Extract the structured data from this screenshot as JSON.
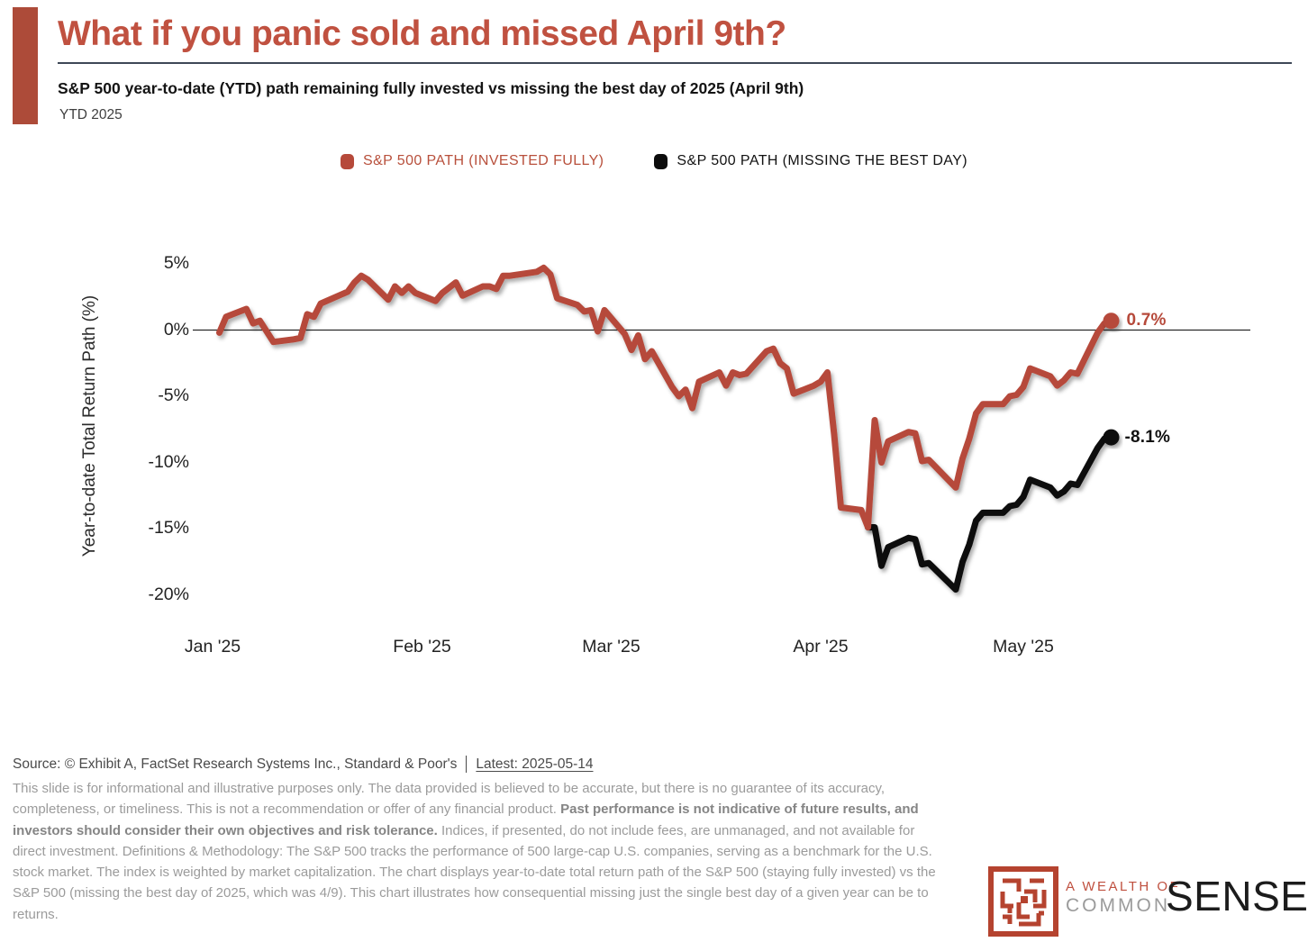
{
  "colors": {
    "accent_bar": "#ad4b39",
    "title_red": "#c05140",
    "rule_slate": "#3e4857",
    "line_red": "#b6493a",
    "line_black": "#141414",
    "legend_red_text": "#b8503c",
    "wealth_red": "#c05140",
    "common_gray": "#9b9b9b",
    "sense_black": "#1c1c1c",
    "maze_red": "#b5432f"
  },
  "header": {
    "title": "What if you panic sold and missed April 9th?",
    "subtitle": "S&P 500 year-to-date (YTD) path remaining fully invested vs missing the best day of 2025 (April 9th)",
    "period": "YTD 2025"
  },
  "legend": [
    {
      "label": "S&P 500 PATH (INVESTED FULLY)",
      "color": "#b6493a"
    },
    {
      "label": "S&P 500 PATH (MISSING THE BEST DAY)",
      "color": "#0c0c0c"
    }
  ],
  "chart_data": {
    "type": "line",
    "title": "S&P 500 year-to-date (YTD) path remaining fully invested vs missing the best day of 2025 (April 9th)",
    "xlabel": "",
    "ylabel": "Year-to-date Total Return Path (%)",
    "ylim": [
      -22,
      6.5
    ],
    "xlim": [
      "2025-01-01",
      "2025-05-16"
    ],
    "grid": false,
    "zero_line": true,
    "legend_position": "top-center",
    "yticks": [
      {
        "value": 5,
        "label": "5%"
      },
      {
        "value": 0,
        "label": "0%"
      },
      {
        "value": -5,
        "label": "-5%"
      },
      {
        "value": -10,
        "label": "-10%"
      },
      {
        "value": -15,
        "label": "-15%"
      },
      {
        "value": -20,
        "label": "-20%"
      }
    ],
    "xticks": [
      {
        "date": "2025-01-01",
        "label": "Jan '25"
      },
      {
        "date": "2025-02-01",
        "label": "Feb '25"
      },
      {
        "date": "2025-03-01",
        "label": "Mar '25"
      },
      {
        "date": "2025-04-01",
        "label": "Apr '25"
      },
      {
        "date": "2025-05-01",
        "label": "May '25"
      }
    ],
    "series": [
      {
        "name": "S&P 500 PATH (INVESTED FULLY)",
        "color": "#b6493a",
        "end_label": "0.7%",
        "end_value": 0.7,
        "points": [
          [
            "2025-01-02",
            -0.2
          ],
          [
            "2025-01-03",
            1.0
          ],
          [
            "2025-01-06",
            1.6
          ],
          [
            "2025-01-07",
            0.5
          ],
          [
            "2025-01-08",
            0.7
          ],
          [
            "2025-01-10",
            -0.9
          ],
          [
            "2025-01-13",
            -0.7
          ],
          [
            "2025-01-14",
            -0.6
          ],
          [
            "2025-01-15",
            1.2
          ],
          [
            "2025-01-16",
            1.0
          ],
          [
            "2025-01-17",
            2.0
          ],
          [
            "2025-01-21",
            2.9
          ],
          [
            "2025-01-22",
            3.6
          ],
          [
            "2025-01-23",
            4.1
          ],
          [
            "2025-01-24",
            3.8
          ],
          [
            "2025-01-27",
            2.3
          ],
          [
            "2025-01-28",
            3.3
          ],
          [
            "2025-01-29",
            2.8
          ],
          [
            "2025-01-30",
            3.3
          ],
          [
            "2025-01-31",
            2.8
          ],
          [
            "2025-02-03",
            2.2
          ],
          [
            "2025-02-04",
            2.8
          ],
          [
            "2025-02-05",
            3.2
          ],
          [
            "2025-02-06",
            3.6
          ],
          [
            "2025-02-07",
            2.6
          ],
          [
            "2025-02-10",
            3.3
          ],
          [
            "2025-02-11",
            3.3
          ],
          [
            "2025-02-12",
            3.1
          ],
          [
            "2025-02-13",
            4.1
          ],
          [
            "2025-02-14",
            4.1
          ],
          [
            "2025-02-18",
            4.4
          ],
          [
            "2025-02-19",
            4.7
          ],
          [
            "2025-02-20",
            4.2
          ],
          [
            "2025-02-21",
            2.4
          ],
          [
            "2025-02-24",
            1.9
          ],
          [
            "2025-02-25",
            1.4
          ],
          [
            "2025-02-26",
            1.5
          ],
          [
            "2025-02-27",
            -0.1
          ],
          [
            "2025-02-28",
            1.5
          ],
          [
            "2025-03-03",
            -0.3
          ],
          [
            "2025-03-04",
            -1.5
          ],
          [
            "2025-03-05",
            -0.4
          ],
          [
            "2025-03-06",
            -2.2
          ],
          [
            "2025-03-07",
            -1.6
          ],
          [
            "2025-03-10",
            -4.3
          ],
          [
            "2025-03-11",
            -5.0
          ],
          [
            "2025-03-12",
            -4.5
          ],
          [
            "2025-03-13",
            -5.9
          ],
          [
            "2025-03-14",
            -3.9
          ],
          [
            "2025-03-17",
            -3.2
          ],
          [
            "2025-03-18",
            -4.2
          ],
          [
            "2025-03-19",
            -3.2
          ],
          [
            "2025-03-20",
            -3.4
          ],
          [
            "2025-03-21",
            -3.3
          ],
          [
            "2025-03-24",
            -1.6
          ],
          [
            "2025-03-25",
            -1.4
          ],
          [
            "2025-03-26",
            -2.5
          ],
          [
            "2025-03-27",
            -2.9
          ],
          [
            "2025-03-28",
            -4.8
          ],
          [
            "2025-03-31",
            -4.2
          ],
          [
            "2025-04-01",
            -3.9
          ],
          [
            "2025-04-02",
            -3.2
          ],
          [
            "2025-04-03",
            -7.9
          ],
          [
            "2025-04-04",
            -13.4
          ],
          [
            "2025-04-07",
            -13.6
          ],
          [
            "2025-04-08",
            -14.9
          ],
          [
            "2025-04-09",
            -6.8
          ],
          [
            "2025-04-10",
            -10.0
          ],
          [
            "2025-04-11",
            -8.4
          ],
          [
            "2025-04-14",
            -7.7
          ],
          [
            "2025-04-15",
            -7.8
          ],
          [
            "2025-04-16",
            -9.9
          ],
          [
            "2025-04-17",
            -9.8
          ],
          [
            "2025-04-21",
            -11.9
          ],
          [
            "2025-04-22",
            -9.7
          ],
          [
            "2025-04-23",
            -8.2
          ],
          [
            "2025-04-24",
            -6.3
          ],
          [
            "2025-04-25",
            -5.6
          ],
          [
            "2025-04-28",
            -5.6
          ],
          [
            "2025-04-29",
            -5.0
          ],
          [
            "2025-04-30",
            -4.9
          ],
          [
            "2025-05-01",
            -4.3
          ],
          [
            "2025-05-02",
            -2.9
          ],
          [
            "2025-05-05",
            -3.5
          ],
          [
            "2025-05-06",
            -4.2
          ],
          [
            "2025-05-07",
            -3.8
          ],
          [
            "2025-05-08",
            -3.2
          ],
          [
            "2025-05-09",
            -3.3
          ],
          [
            "2025-05-12",
            -0.2
          ],
          [
            "2025-05-13",
            0.5
          ],
          [
            "2025-05-14",
            0.7
          ]
        ]
      },
      {
        "name": "S&P 500 PATH (MISSING THE BEST DAY)",
        "color": "#0c0c0c",
        "end_label": "-8.1%",
        "end_value": -8.1,
        "points": [
          [
            "2025-04-08",
            -14.9
          ],
          [
            "2025-04-09",
            -14.9
          ],
          [
            "2025-04-10",
            -17.8
          ],
          [
            "2025-04-11",
            -16.4
          ],
          [
            "2025-04-14",
            -15.7
          ],
          [
            "2025-04-15",
            -15.8
          ],
          [
            "2025-04-16",
            -17.7
          ],
          [
            "2025-04-17",
            -17.6
          ],
          [
            "2025-04-21",
            -19.6
          ],
          [
            "2025-04-22",
            -17.5
          ],
          [
            "2025-04-23",
            -16.2
          ],
          [
            "2025-04-24",
            -14.4
          ],
          [
            "2025-04-25",
            -13.8
          ],
          [
            "2025-04-28",
            -13.8
          ],
          [
            "2025-04-29",
            -13.3
          ],
          [
            "2025-04-30",
            -13.2
          ],
          [
            "2025-05-01",
            -12.6
          ],
          [
            "2025-05-02",
            -11.3
          ],
          [
            "2025-05-05",
            -11.9
          ],
          [
            "2025-05-06",
            -12.5
          ],
          [
            "2025-05-07",
            -12.2
          ],
          [
            "2025-05-08",
            -11.6
          ],
          [
            "2025-05-09",
            -11.7
          ],
          [
            "2025-05-12",
            -8.9
          ],
          [
            "2025-05-13",
            -8.2
          ],
          [
            "2025-05-14",
            -8.1
          ]
        ]
      }
    ]
  },
  "footer": {
    "source": "Source: © Exhibit A, FactSet Research Systems Inc., Standard & Poor's",
    "latest": "Latest: 2025-05-14",
    "disclaimer_1": "This slide is for informational and illustrative purposes only. The data provided is believed to be accurate, but there is no guarantee of its accuracy, completeness, or timeliness. This is not a recommendation or offer of any financial product. ",
    "disclaimer_bold": "Past performance is not indicative of future results, and investors should consider their own objectives and risk tolerance.",
    "disclaimer_2": " Indices, if presented, do not include fees, are unmanaged, and not available for direct investment. Definitions & Methodology: The S&P 500 tracks the performance of 500 large-cap U.S. companies, serving as a benchmark for the U.S. stock market. The index is weighted by market capitalization. The chart displays year-to-date total return path of the S&P 500 (staying fully invested) vs the S&P 500 (missing the best day of 2025, which was 4/9). This chart illustrates how consequential missing just the single best day of a given year can be to returns."
  },
  "logo": {
    "line1": "A WEALTH OF",
    "line2": "COMMON",
    "line3": "SENSE",
    "icon": "maze-icon"
  }
}
